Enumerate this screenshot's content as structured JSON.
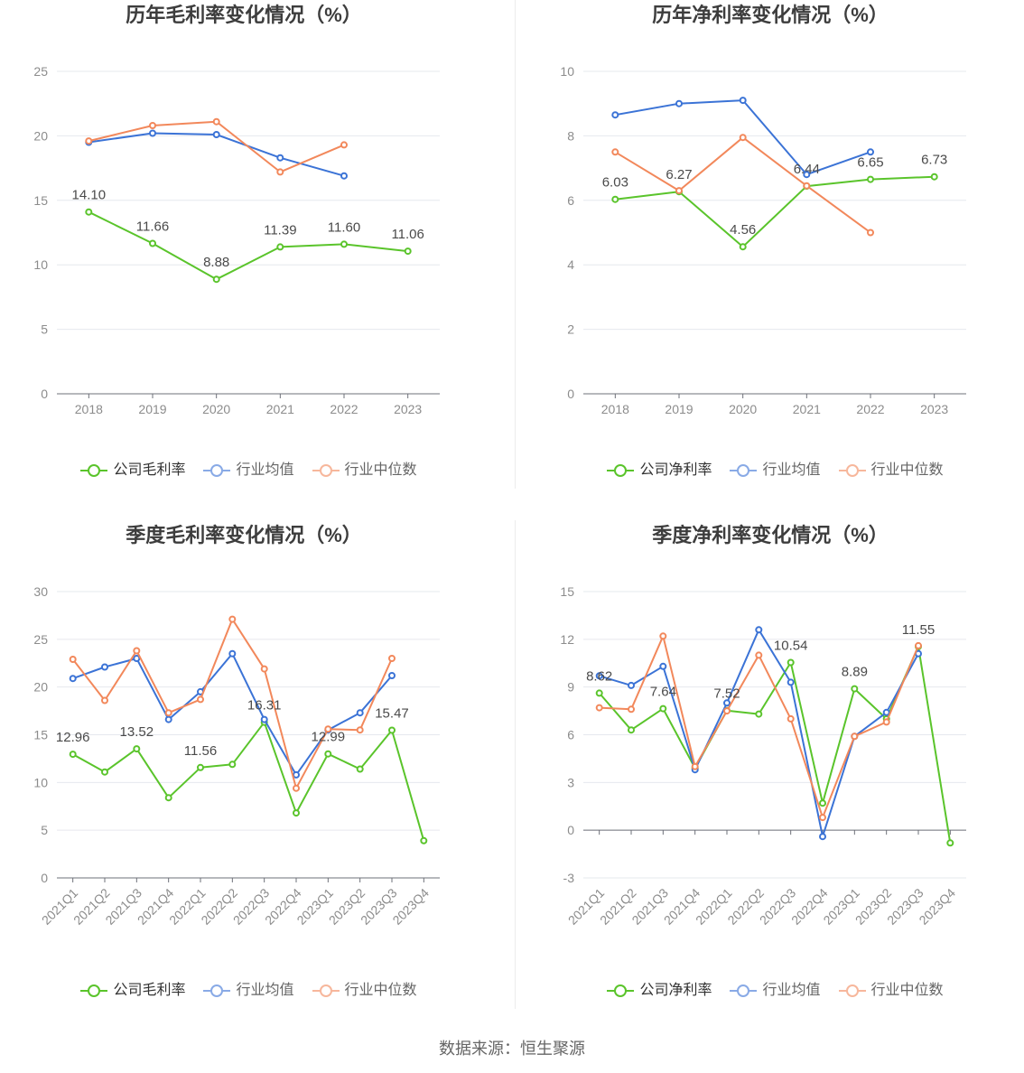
{
  "source": "数据来源：恒生聚源",
  "chart_data": [
    {
      "type": "line",
      "title": "历年毛利率变化情况（%）",
      "categories": [
        "2018",
        "2019",
        "2020",
        "2021",
        "2022",
        "2023"
      ],
      "ylim": [
        0,
        25
      ],
      "yticks": [
        0,
        5,
        10,
        15,
        20,
        25
      ],
      "grid": true,
      "legend": "bottom",
      "series": [
        {
          "name": "公司毛利率",
          "color": "#5ac42b",
          "values": [
            14.1,
            11.66,
            8.88,
            11.39,
            11.6,
            11.06
          ],
          "data_labels": [
            "14.10",
            "11.66",
            "8.88",
            "11.39",
            "11.60",
            "11.06"
          ]
        },
        {
          "name": "行业均值",
          "color": "#3b73d6",
          "values": [
            19.5,
            20.2,
            20.1,
            18.3,
            16.9,
            null
          ]
        },
        {
          "name": "行业中位数",
          "color": "#f2885b",
          "values": [
            19.6,
            20.8,
            21.1,
            17.2,
            19.3,
            null
          ]
        }
      ]
    },
    {
      "type": "line",
      "title": "历年净利率变化情况（%）",
      "categories": [
        "2018",
        "2019",
        "2020",
        "2021",
        "2022",
        "2023"
      ],
      "ylim": [
        0,
        10
      ],
      "yticks": [
        0,
        2,
        4,
        6,
        8,
        10
      ],
      "grid": true,
      "legend": "bottom",
      "series": [
        {
          "name": "公司净利率",
          "color": "#5ac42b",
          "values": [
            6.03,
            6.27,
            4.56,
            6.44,
            6.65,
            6.73
          ],
          "data_labels": [
            "6.03",
            "6.27",
            "4.56",
            "6.44",
            "6.65",
            "6.73"
          ]
        },
        {
          "name": "行业均值",
          "color": "#3b73d6",
          "values": [
            8.65,
            9.0,
            9.1,
            6.8,
            7.5,
            null
          ]
        },
        {
          "name": "行业中位数",
          "color": "#f2885b",
          "values": [
            7.5,
            6.3,
            7.95,
            6.45,
            5.0,
            null
          ]
        }
      ]
    },
    {
      "type": "line",
      "title": "季度毛利率变化情况（%）",
      "categories": [
        "2021Q1",
        "2021Q2",
        "2021Q3",
        "2021Q4",
        "2022Q1",
        "2022Q2",
        "2022Q3",
        "2022Q4",
        "2023Q1",
        "2023Q2",
        "2023Q3",
        "2023Q4"
      ],
      "ylim": [
        0,
        30
      ],
      "yticks": [
        0,
        5,
        10,
        15,
        20,
        25,
        30
      ],
      "grid": true,
      "legend": "bottom",
      "series": [
        {
          "name": "公司毛利率",
          "color": "#5ac42b",
          "values": [
            12.96,
            11.1,
            13.52,
            8.4,
            11.56,
            11.9,
            16.31,
            6.8,
            12.99,
            11.4,
            15.47,
            3.9
          ],
          "data_labels": [
            "12.96",
            null,
            "13.52",
            null,
            "11.56",
            null,
            "16.31",
            null,
            "12.99",
            null,
            "15.47",
            null
          ]
        },
        {
          "name": "行业均值",
          "color": "#3b73d6",
          "values": [
            20.9,
            22.1,
            23.0,
            16.6,
            19.5,
            23.5,
            16.6,
            10.8,
            15.5,
            17.3,
            21.2,
            null
          ]
        },
        {
          "name": "行业中位数",
          "color": "#f2885b",
          "values": [
            22.9,
            18.6,
            23.8,
            17.3,
            18.7,
            27.1,
            21.9,
            9.4,
            15.6,
            15.5,
            23.0,
            null
          ]
        }
      ]
    },
    {
      "type": "line",
      "title": "季度净利率变化情况（%）",
      "categories": [
        "2021Q1",
        "2021Q2",
        "2021Q3",
        "2021Q4",
        "2022Q1",
        "2022Q2",
        "2022Q3",
        "2022Q4",
        "2023Q1",
        "2023Q2",
        "2023Q3",
        "2023Q4"
      ],
      "ylim": [
        -3,
        15
      ],
      "yticks": [
        -3,
        0,
        3,
        6,
        9,
        12,
        15
      ],
      "grid": true,
      "legend": "bottom",
      "series": [
        {
          "name": "公司净利率",
          "color": "#5ac42b",
          "values": [
            8.62,
            6.3,
            7.64,
            3.9,
            7.52,
            7.3,
            10.54,
            1.7,
            8.89,
            7.0,
            11.55,
            -0.8
          ],
          "data_labels": [
            "8.62",
            null,
            "7.64",
            null,
            "7.52",
            null,
            "10.54",
            null,
            "8.89",
            null,
            "11.55",
            null
          ]
        },
        {
          "name": "行业均值",
          "color": "#3b73d6",
          "values": [
            9.7,
            9.1,
            10.3,
            3.8,
            8.0,
            12.6,
            9.3,
            -0.4,
            5.9,
            7.4,
            11.1,
            null
          ]
        },
        {
          "name": "行业中位数",
          "color": "#f2885b",
          "values": [
            7.7,
            7.6,
            12.2,
            4.0,
            7.5,
            11.0,
            7.0,
            0.8,
            5.9,
            6.8,
            11.6,
            null
          ]
        }
      ]
    }
  ]
}
